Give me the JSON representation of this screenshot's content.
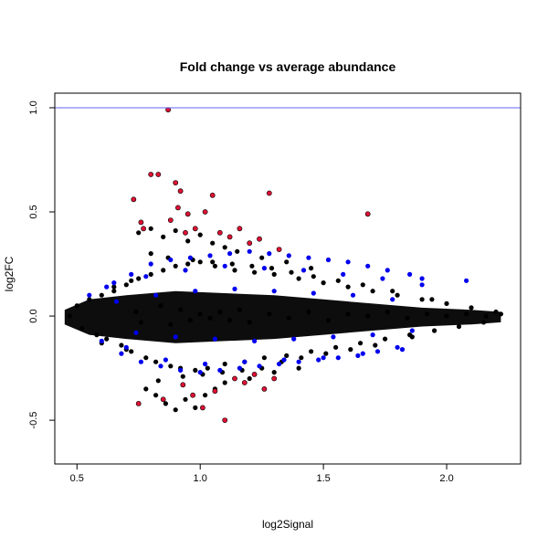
{
  "chart_data": {
    "type": "scatter",
    "title": "Fold change vs average abundance",
    "xlabel": "log2Signal",
    "ylabel": "log2FC",
    "xlim": [
      0.41,
      2.3
    ],
    "ylim": [
      -0.71,
      1.07
    ],
    "x_ticks": [
      0.5,
      1.0,
      1.5,
      2.0
    ],
    "x_tick_labels": [
      "0.5",
      "1.0",
      "1.5",
      "2.0"
    ],
    "y_ticks": [
      -0.5,
      0.0,
      0.5,
      1.0
    ],
    "y_tick_labels": [
      "-0.5",
      "0.0",
      "0.5",
      "1.0"
    ],
    "grid": false,
    "reference_line": {
      "y": 1.0,
      "color": "#6666ff"
    },
    "colors": {
      "black": "#000000",
      "blue": "#0000ee",
      "red": "#dd1133",
      "point_outline": "#000000"
    },
    "series": [
      {
        "color": "black",
        "x": [
          0.47,
          0.5,
          0.52,
          0.55,
          0.58,
          0.6,
          0.62,
          0.65,
          0.68,
          0.7,
          0.72,
          0.75,
          0.78,
          0.8,
          0.82,
          0.85,
          0.88,
          0.9,
          0.92,
          0.95,
          0.98,
          1.0,
          1.03,
          1.06,
          1.1,
          1.14,
          1.18,
          1.22,
          1.26,
          1.3,
          1.35,
          1.4,
          1.45,
          1.5,
          1.55,
          1.6,
          1.65,
          1.7,
          1.75,
          1.8,
          1.85,
          1.9,
          1.95,
          2.0,
          2.05,
          2.1,
          2.15,
          2.2,
          2.22,
          0.78,
          0.82,
          0.86,
          0.9,
          0.94,
          0.98,
          1.02,
          1.06,
          1.1,
          1.2,
          1.3,
          1.4,
          0.75,
          0.8,
          0.85,
          0.9,
          0.95,
          1.0,
          1.05,
          1.1,
          1.15,
          1.25,
          1.35,
          1.45,
          0.74,
          0.76,
          0.84,
          0.88,
          0.92,
          0.96,
          1.0,
          1.04,
          1.08,
          1.12,
          1.16,
          1.2,
          1.28,
          1.36,
          1.44,
          1.52,
          1.6,
          1.68,
          1.76,
          1.84,
          1.92,
          2.0,
          2.08,
          2.16,
          0.6,
          0.65,
          0.7,
          0.72,
          0.8,
          0.83,
          0.87,
          0.93,
          0.97,
          1.01,
          1.05,
          1.09,
          1.13,
          1.17,
          1.21,
          1.25,
          1.29,
          1.33,
          1.37,
          1.41,
          1.46,
          1.51,
          1.56,
          1.61,
          1.66,
          1.71,
          1.78,
          1.86,
          1.94
        ],
        "y": [
          0.0,
          0.05,
          -0.06,
          0.08,
          -0.09,
          0.1,
          -0.11,
          0.12,
          -0.14,
          0.15,
          -0.17,
          0.18,
          -0.2,
          0.2,
          -0.22,
          0.22,
          -0.24,
          0.24,
          -0.25,
          0.25,
          -0.26,
          0.26,
          -0.25,
          0.24,
          -0.23,
          0.22,
          -0.22,
          0.21,
          -0.2,
          0.2,
          -0.19,
          0.18,
          -0.17,
          0.16,
          -0.15,
          0.14,
          -0.13,
          0.12,
          -0.11,
          0.1,
          -0.09,
          0.08,
          -0.07,
          0.06,
          -0.05,
          0.04,
          -0.03,
          0.02,
          0.01,
          -0.35,
          -0.38,
          -0.42,
          -0.45,
          -0.4,
          -0.44,
          -0.38,
          -0.35,
          -0.32,
          -0.3,
          -0.27,
          -0.25,
          0.4,
          0.42,
          0.38,
          0.41,
          0.36,
          0.39,
          0.35,
          0.33,
          0.31,
          0.28,
          0.26,
          0.23,
          0.02,
          -0.03,
          0.05,
          -0.04,
          0.03,
          -0.02,
          0.01,
          -0.01,
          0.02,
          -0.02,
          0.03,
          -0.03,
          0.01,
          -0.01,
          0.02,
          -0.02,
          0.01,
          0.0,
          0.02,
          -0.01,
          0.01,
          0.0,
          0.01,
          0.0,
          -0.13,
          0.14,
          -0.16,
          0.17,
          0.3,
          -0.31,
          0.28,
          -0.29,
          0.27,
          -0.28,
          0.26,
          -0.27,
          0.25,
          -0.26,
          0.24,
          -0.25,
          0.23,
          -0.22,
          0.21,
          -0.2,
          0.19,
          -0.18,
          0.17,
          -0.16,
          0.15,
          -0.14,
          0.12,
          -0.1,
          0.08
        ]
      },
      {
        "color": "blue",
        "x": [
          0.55,
          0.6,
          0.65,
          0.68,
          0.72,
          0.76,
          0.8,
          0.84,
          0.88,
          0.92,
          0.96,
          1.0,
          1.04,
          1.08,
          1.12,
          1.16,
          1.2,
          1.24,
          1.28,
          1.32,
          1.36,
          1.4,
          1.44,
          1.48,
          1.52,
          1.56,
          1.6,
          1.64,
          1.68,
          1.72,
          1.76,
          1.8,
          1.85,
          1.9,
          2.08,
          0.62,
          0.7,
          0.78,
          0.86,
          0.94,
          1.02,
          1.1,
          1.18,
          1.26,
          1.34,
          1.42,
          1.5,
          1.58,
          1.66,
          1.74,
          1.82,
          1.9,
          0.66,
          0.74,
          0.82,
          0.9,
          0.98,
          1.06,
          1.14,
          1.22,
          1.3,
          1.38,
          1.46,
          1.54,
          1.62,
          1.7,
          1.78,
          1.86
        ],
        "y": [
          0.1,
          -0.12,
          0.16,
          -0.18,
          0.2,
          -0.22,
          0.25,
          -0.24,
          0.27,
          -0.26,
          0.28,
          -0.27,
          0.29,
          -0.26,
          0.3,
          -0.25,
          0.31,
          -0.24,
          0.3,
          -0.23,
          0.29,
          -0.22,
          0.28,
          -0.21,
          0.27,
          -0.2,
          0.26,
          -0.19,
          0.24,
          -0.17,
          0.22,
          -0.15,
          0.2,
          0.18,
          0.17,
          0.14,
          -0.15,
          0.19,
          -0.21,
          0.22,
          -0.23,
          0.24,
          -0.22,
          0.23,
          -0.21,
          0.22,
          -0.2,
          0.2,
          -0.18,
          0.18,
          -0.16,
          0.15,
          0.07,
          -0.08,
          0.1,
          -0.1,
          0.12,
          -0.11,
          0.13,
          -0.12,
          0.12,
          -0.11,
          0.11,
          -0.1,
          0.1,
          -0.09,
          0.08,
          -0.07
        ]
      },
      {
        "color": "red",
        "x": [
          0.73,
          0.76,
          0.8,
          0.83,
          0.87,
          0.9,
          0.92,
          0.95,
          0.98,
          1.02,
          1.05,
          1.08,
          1.12,
          1.16,
          1.2,
          1.24,
          1.28,
          1.32,
          1.68,
          0.75,
          0.85,
          0.93,
          0.97,
          1.01,
          1.06,
          1.1,
          1.14,
          1.18,
          1.22,
          1.26,
          1.3,
          0.77,
          0.88,
          0.91,
          0.94
        ],
        "y": [
          0.56,
          0.45,
          0.68,
          0.68,
          0.99,
          0.64,
          0.6,
          0.49,
          0.42,
          0.5,
          0.58,
          0.4,
          0.38,
          0.42,
          0.35,
          0.37,
          0.59,
          0.32,
          0.49,
          -0.42,
          -0.4,
          -0.33,
          -0.38,
          -0.44,
          -0.36,
          -0.5,
          -0.3,
          -0.32,
          -0.28,
          -0.35,
          -0.3,
          0.42,
          0.46,
          0.52,
          0.4
        ]
      }
    ]
  }
}
